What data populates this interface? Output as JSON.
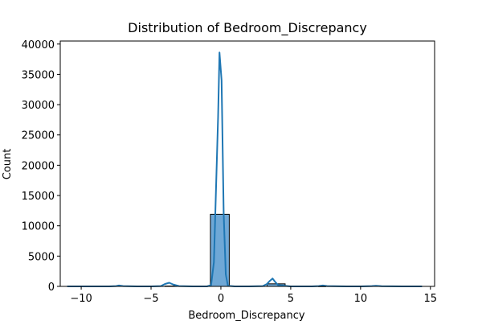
{
  "chart_data": {
    "type": "histogram",
    "title": "Distribution of Bedroom_Discrepancy",
    "xlabel": "Bedroom_Discrepancy",
    "ylabel": "Count",
    "xlim": [
      -11.5,
      15.3
    ],
    "ylim": [
      0,
      40500
    ],
    "x_ticks": [
      -10,
      -5,
      0,
      5,
      10,
      15
    ],
    "x_tick_labels": [
      "−10",
      "−5",
      "0",
      "5",
      "10",
      "15"
    ],
    "y_ticks": [
      0,
      5000,
      10000,
      15000,
      20000,
      25000,
      30000,
      35000,
      40000
    ],
    "y_tick_labels": [
      "0",
      "5000",
      "10000",
      "15000",
      "20000",
      "25000",
      "30000",
      "35000",
      "40000"
    ],
    "bars": [
      {
        "x0": -0.75,
        "x1": 0.6,
        "count": 11900
      },
      {
        "x0": 3.3,
        "x1": 4.6,
        "count": 420
      },
      {
        "x0": -4.0,
        "x1": -3.2,
        "count": 60
      },
      {
        "x0": 7.0,
        "x1": 7.5,
        "count": 30
      }
    ],
    "kde": {
      "x": [
        -11.0,
        -10.5,
        -8.0,
        -7.5,
        -7.3,
        -7.0,
        -6.0,
        -5.0,
        -4.3,
        -4.0,
        -3.7,
        -3.4,
        -3.0,
        -2.0,
        -1.0,
        -0.7,
        -0.5,
        -0.35,
        -0.2,
        -0.1,
        0.05,
        0.2,
        0.35,
        0.5,
        1.0,
        2.0,
        3.0,
        3.3,
        3.5,
        3.7,
        3.9,
        4.1,
        5.0,
        6.5,
        7.0,
        7.3,
        7.6,
        9.0,
        10.0,
        10.8,
        11.1,
        11.5,
        13.0,
        14.4
      ],
      "y": [
        0,
        0,
        0,
        50,
        150,
        50,
        0,
        0,
        50,
        400,
        600,
        300,
        50,
        0,
        0,
        200,
        4000,
        16000,
        28000,
        38600,
        34000,
        12000,
        2000,
        100,
        0,
        0,
        50,
        400,
        900,
        1300,
        700,
        200,
        0,
        0,
        50,
        150,
        50,
        0,
        0,
        50,
        100,
        40,
        0,
        0
      ]
    },
    "colors": {
      "bar_fill": "#6fa8d6",
      "bar_edge": "#000000",
      "kde_line": "#1f77b4"
    },
    "grid": false,
    "legend": "none"
  }
}
